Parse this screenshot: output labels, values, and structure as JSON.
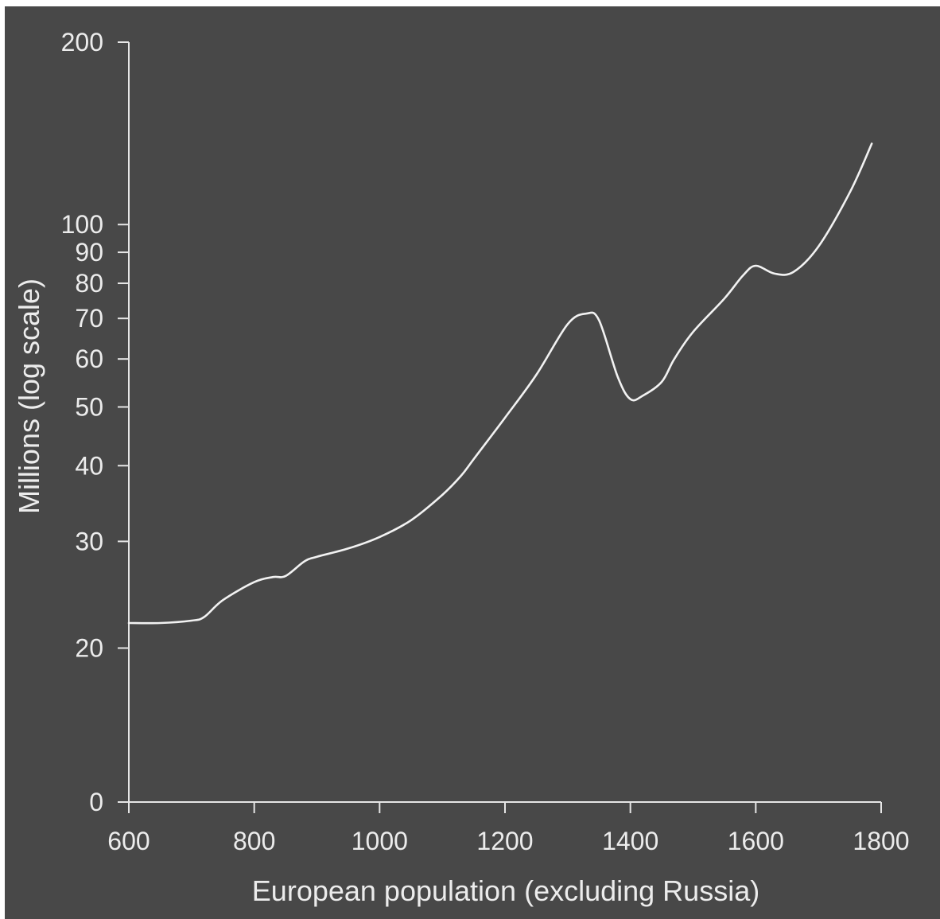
{
  "chart_data": {
    "type": "line",
    "xlabel": "European population (excluding Russia)",
    "ylabel": "Millions (log scale)",
    "y_scale": "log",
    "xlim": [
      600,
      1800
    ],
    "x_ticks": [
      600,
      800,
      1000,
      1200,
      1400,
      1600,
      1800
    ],
    "x_tick_labels": [
      "600",
      "800",
      "1000",
      "1200",
      "1400",
      "1600",
      "1800"
    ],
    "y_ticks": [
      {
        "value": 0,
        "label": "0"
      },
      {
        "value": 20,
        "label": "20"
      },
      {
        "value": 30,
        "label": "30"
      },
      {
        "value": 40,
        "label": "40"
      },
      {
        "value": 50,
        "label": "50"
      },
      {
        "value": 60,
        "label": "60"
      },
      {
        "value": 70,
        "label": "70"
      },
      {
        "value": 80,
        "label": "80"
      },
      {
        "value": 90,
        "label": "90"
      },
      {
        "value": 100,
        "label": "100"
      },
      {
        "value": 200,
        "label": "200"
      }
    ],
    "series": [
      {
        "x": [
          600,
          650,
          700,
          720,
          750,
          800,
          830,
          850,
          880,
          900,
          950,
          1000,
          1050,
          1100,
          1130,
          1150,
          1200,
          1250,
          1300,
          1330,
          1350,
          1380,
          1400,
          1420,
          1450,
          1470,
          1500,
          1550,
          1580,
          1600,
          1630,
          1660,
          1700,
          1750,
          1785
        ],
        "y": [
          22,
          22,
          22.2,
          22.5,
          24,
          25.7,
          26.2,
          26.3,
          27.8,
          28.3,
          29.2,
          30.5,
          32.5,
          35.8,
          38.5,
          41,
          48,
          56.5,
          68.5,
          71.3,
          69.5,
          56,
          51.5,
          52.2,
          55,
          60,
          66.5,
          75.5,
          82.5,
          85.5,
          83,
          83.5,
          92,
          113,
          136
        ]
      }
    ],
    "colors": {
      "background": "#484848",
      "line": "#f2f2f2",
      "axis": "#e6e6e6"
    }
  }
}
